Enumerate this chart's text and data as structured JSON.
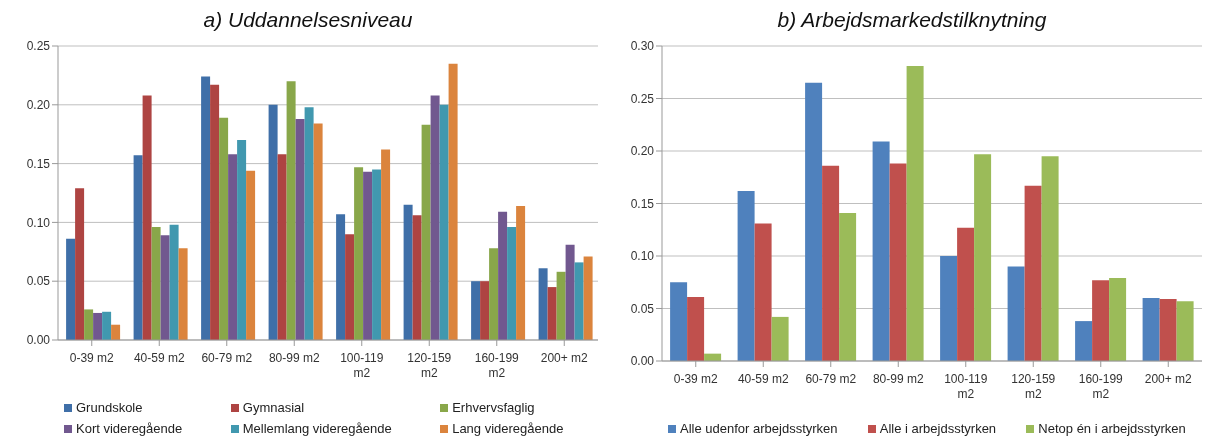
{
  "chart_data": [
    {
      "type": "bar",
      "title": "a) Uddannelsesniveau",
      "categories": [
        "0-39 m2",
        "40-59 m2",
        "60-79 m2",
        "80-99 m2",
        "100-119 m2",
        "120-159 m2",
        "160-199 m2",
        "200+ m2"
      ],
      "series": [
        {
          "name": "Grundskole",
          "color": "#3f6fa8",
          "values": [
            0.086,
            0.157,
            0.224,
            0.2,
            0.107,
            0.115,
            0.05,
            0.061
          ]
        },
        {
          "name": "Gymnasial",
          "color": "#ae4442",
          "values": [
            0.129,
            0.208,
            0.217,
            0.158,
            0.09,
            0.106,
            0.05,
            0.045
          ]
        },
        {
          "name": "Erhvervsfaglig",
          "color": "#89a74a",
          "values": [
            0.026,
            0.096,
            0.189,
            0.22,
            0.147,
            0.183,
            0.078,
            0.058
          ]
        },
        {
          "name": "Kort videregående",
          "color": "#71588f",
          "values": [
            0.023,
            0.089,
            0.158,
            0.188,
            0.143,
            0.208,
            0.109,
            0.081
          ]
        },
        {
          "name": "Mellemlang videregående",
          "color": "#4198af",
          "values": [
            0.024,
            0.098,
            0.17,
            0.198,
            0.145,
            0.2,
            0.096,
            0.066
          ]
        },
        {
          "name": "Lang videregående",
          "color": "#db843d",
          "values": [
            0.013,
            0.078,
            0.144,
            0.184,
            0.162,
            0.235,
            0.114,
            0.071
          ]
        }
      ],
      "ylim": [
        0,
        0.25
      ],
      "yticks": [
        {
          "value": 0,
          "label": "0.00"
        },
        {
          "value": 0.05,
          "label": "0.05"
        },
        {
          "value": 0.1,
          "label": "0.10"
        },
        {
          "value": 0.15,
          "label": "0.15"
        },
        {
          "value": 0.2,
          "label": "0.20"
        },
        {
          "value": 0.25,
          "label": "0.25"
        }
      ],
      "grid": "y",
      "legend": "bottom"
    },
    {
      "type": "bar",
      "title": "b) Arbejdsmarkedstilknytning",
      "categories": [
        "0-39 m2",
        "40-59 m2",
        "60-79 m2",
        "80-99 m2",
        "100-119 m2",
        "120-159 m2",
        "160-199 m2",
        "200+ m2"
      ],
      "series": [
        {
          "name": "Alle udenfor arbejdsstyrken",
          "color": "#4f81bd",
          "values": [
            0.075,
            0.162,
            0.265,
            0.209,
            0.1,
            0.09,
            0.038,
            0.06
          ]
        },
        {
          "name": "Alle i arbejdsstyrken",
          "color": "#c0504d",
          "values": [
            0.061,
            0.131,
            0.186,
            0.188,
            0.127,
            0.167,
            0.077,
            0.059
          ]
        },
        {
          "name": "Netop én i arbejdsstyrken",
          "color": "#9bbb59",
          "values": [
            0.007,
            0.042,
            0.141,
            0.281,
            0.197,
            0.195,
            0.079,
            0.057
          ]
        }
      ],
      "ylim": [
        0,
        0.3
      ],
      "yticks": [
        {
          "value": 0,
          "label": "0.00"
        },
        {
          "value": 0.05,
          "label": "0.05"
        },
        {
          "value": 0.1,
          "label": "0.10"
        },
        {
          "value": 0.15,
          "label": "0.15"
        },
        {
          "value": 0.2,
          "label": "0.20"
        },
        {
          "value": 0.25,
          "label": "0.25"
        },
        {
          "value": 0.3,
          "label": "0.30"
        }
      ],
      "grid": "y",
      "legend": "bottom"
    }
  ]
}
